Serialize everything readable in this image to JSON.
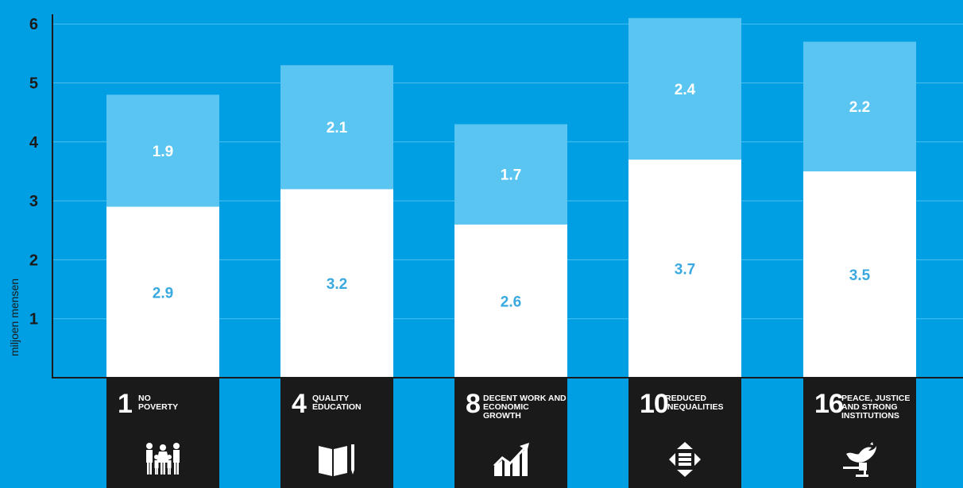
{
  "chart_data": {
    "type": "bar",
    "stacked": true,
    "ylabel": "miljoen mensen",
    "ylim": [
      0,
      6.3
    ],
    "yticks": [
      1,
      2,
      3,
      4,
      5,
      6
    ],
    "grid": true,
    "categories": [
      "1",
      "4",
      "8",
      "10",
      "16"
    ],
    "series": [
      {
        "values": [
          2.9,
          3.2,
          2.6,
          3.7,
          3.5
        ],
        "color": "#ffffff",
        "label_color": "#3aa9e0"
      },
      {
        "values": [
          1.9,
          2.1,
          1.7,
          2.4,
          2.2
        ],
        "color": "#5bc5f2",
        "label_color": "#ffffff"
      }
    ]
  },
  "tiles": [
    {
      "number": "1",
      "text": "No\nPoverty",
      "icon": "family-icon"
    },
    {
      "number": "4",
      "text": "Quality\nEducation",
      "icon": "book-pencil-icon"
    },
    {
      "number": "8",
      "text": "Decent work and\neconomic growth",
      "icon": "growth-chart-icon"
    },
    {
      "number": "10",
      "text": "Reduced\ninequalities",
      "icon": "equality-arrows-icon"
    },
    {
      "number": "16",
      "text": "Peace, justice\nand strong\ninstitutions",
      "icon": "dove-gavel-icon"
    }
  ],
  "colors": {
    "background": "#009fe3",
    "grid": "#4fc0ee",
    "axis": "#1a1a1a",
    "tile": "#1a1a1a"
  }
}
